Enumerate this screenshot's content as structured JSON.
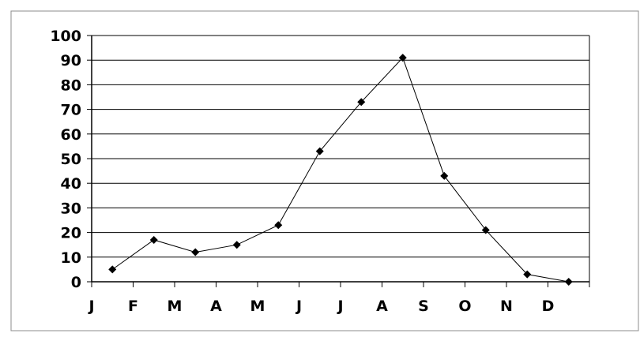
{
  "chart_data": {
    "type": "line",
    "title": "",
    "xlabel": "",
    "ylabel": "",
    "categories": [
      "J",
      "F",
      "M",
      "A",
      "M",
      "J",
      "J",
      "A",
      "S",
      "O",
      "N",
      "D"
    ],
    "series": [
      {
        "values": [
          5,
          17,
          12,
          15,
          23,
          53,
          73,
          91,
          43,
          21,
          3,
          0
        ]
      }
    ],
    "ylim": [
      0,
      100
    ],
    "yticks": [
      0,
      10,
      20,
      30,
      40,
      50,
      60,
      70,
      80,
      90,
      100
    ],
    "ytick_labels": [
      "0",
      "10",
      "20",
      "30",
      "40",
      "50",
      "60",
      "70",
      "80",
      "90",
      "100"
    ],
    "grid": true,
    "legend": "none",
    "colors": {
      "line": "#000000",
      "marker": "#000000",
      "grid": "#000000",
      "background": "#ffffff"
    },
    "marker": "diamond"
  }
}
